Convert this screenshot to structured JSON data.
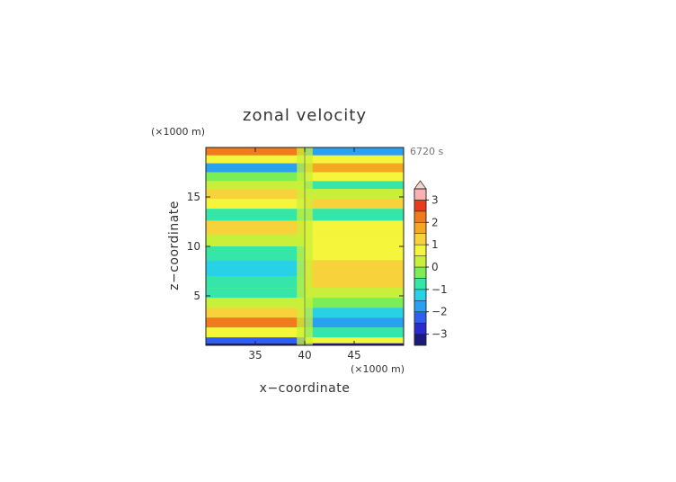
{
  "chart_data": {
    "type": "heatmap",
    "title": "zonal velocity",
    "xlabel": "x−coordinate",
    "ylabel": "z−coordinate",
    "x_unit": "(×1000 m)",
    "y_unit": "(×1000 m)",
    "time_label": "6720 s",
    "xlim": [
      30,
      50
    ],
    "ylim": [
      0,
      20
    ],
    "x_ticks": [
      {
        "value": 35,
        "label": "35"
      },
      {
        "value": 40,
        "label": "40"
      },
      {
        "value": 45,
        "label": "45"
      }
    ],
    "y_ticks": [
      {
        "value": 5,
        "label": "5"
      },
      {
        "value": 10,
        "label": "10"
      },
      {
        "value": 15,
        "label": "15"
      }
    ],
    "colorbar": {
      "levels": [
        -3.5,
        -3,
        -2.5,
        -2,
        -1.5,
        -1,
        -0.5,
        0,
        0.5,
        1,
        1.5,
        2,
        2.5,
        3,
        3.5
      ],
      "colors": [
        "#1b1b7a",
        "#2a2acf",
        "#2f5ff0",
        "#2aa0f0",
        "#28d2e6",
        "#35e6a8",
        "#7aee55",
        "#c8f03a",
        "#f5f53c",
        "#f7d23a",
        "#f5a623",
        "#f07a1e",
        "#e83b1e",
        "#f06a6a",
        "#f7b3b3"
      ],
      "tick_labels": [
        {
          "value": 3,
          "label": "3"
        },
        {
          "value": 2,
          "label": "2"
        },
        {
          "value": 1,
          "label": "1"
        },
        {
          "value": 0,
          "label": "0"
        },
        {
          "value": -1,
          "label": "−1"
        },
        {
          "value": -2,
          "label": "−2"
        },
        {
          "value": -3,
          "label": "−3"
        }
      ],
      "extend": "max"
    },
    "bands": [
      {
        "z": [
          19.2,
          20.0
        ],
        "left": 2.0,
        "right": -2.0
      },
      {
        "z": [
          18.4,
          19.2
        ],
        "left": 0.6,
        "right": 0.6
      },
      {
        "z": [
          17.5,
          18.4
        ],
        "left": -1.6,
        "right": 1.6
      },
      {
        "z": [
          16.6,
          17.5
        ],
        "left": -0.4,
        "right": 0.9
      },
      {
        "z": [
          15.8,
          16.6
        ],
        "left": 0.4,
        "right": -0.6
      },
      {
        "z": [
          14.8,
          15.8
        ],
        "left": 1.0,
        "right": 0.4
      },
      {
        "z": [
          13.8,
          14.8
        ],
        "left": 0.5,
        "right": 1.0
      },
      {
        "z": [
          12.6,
          13.8
        ],
        "left": -0.9,
        "right": -0.6
      },
      {
        "z": [
          11.2,
          12.6
        ],
        "left": 1.0,
        "right": 0.9
      },
      {
        "z": [
          10.0,
          11.2
        ],
        "left": 0.4,
        "right": 0.5
      },
      {
        "z": [
          8.6,
          10.0
        ],
        "left": -0.7,
        "right": 0.9
      },
      {
        "z": [
          7.0,
          8.6
        ],
        "left": -1.2,
        "right": 1.2
      },
      {
        "z": [
          5.8,
          7.0
        ],
        "left": -0.6,
        "right": 1.1
      },
      {
        "z": [
          4.8,
          5.8
        ],
        "left": -0.9,
        "right": 0.3
      },
      {
        "z": [
          3.8,
          4.8
        ],
        "left": 0.3,
        "right": -0.2
      },
      {
        "z": [
          2.8,
          3.8
        ],
        "left": 1.1,
        "right": -1.1
      },
      {
        "z": [
          1.8,
          2.8
        ],
        "left": 2.3,
        "right": -2.0
      },
      {
        "z": [
          0.8,
          1.8
        ],
        "left": 0.6,
        "right": -0.6
      },
      {
        "z": [
          0.2,
          0.8
        ],
        "left": -2.2,
        "right": 0.9
      },
      {
        "z": [
          0.0,
          0.2
        ],
        "left": -3.2,
        "right": -3.2
      }
    ]
  }
}
